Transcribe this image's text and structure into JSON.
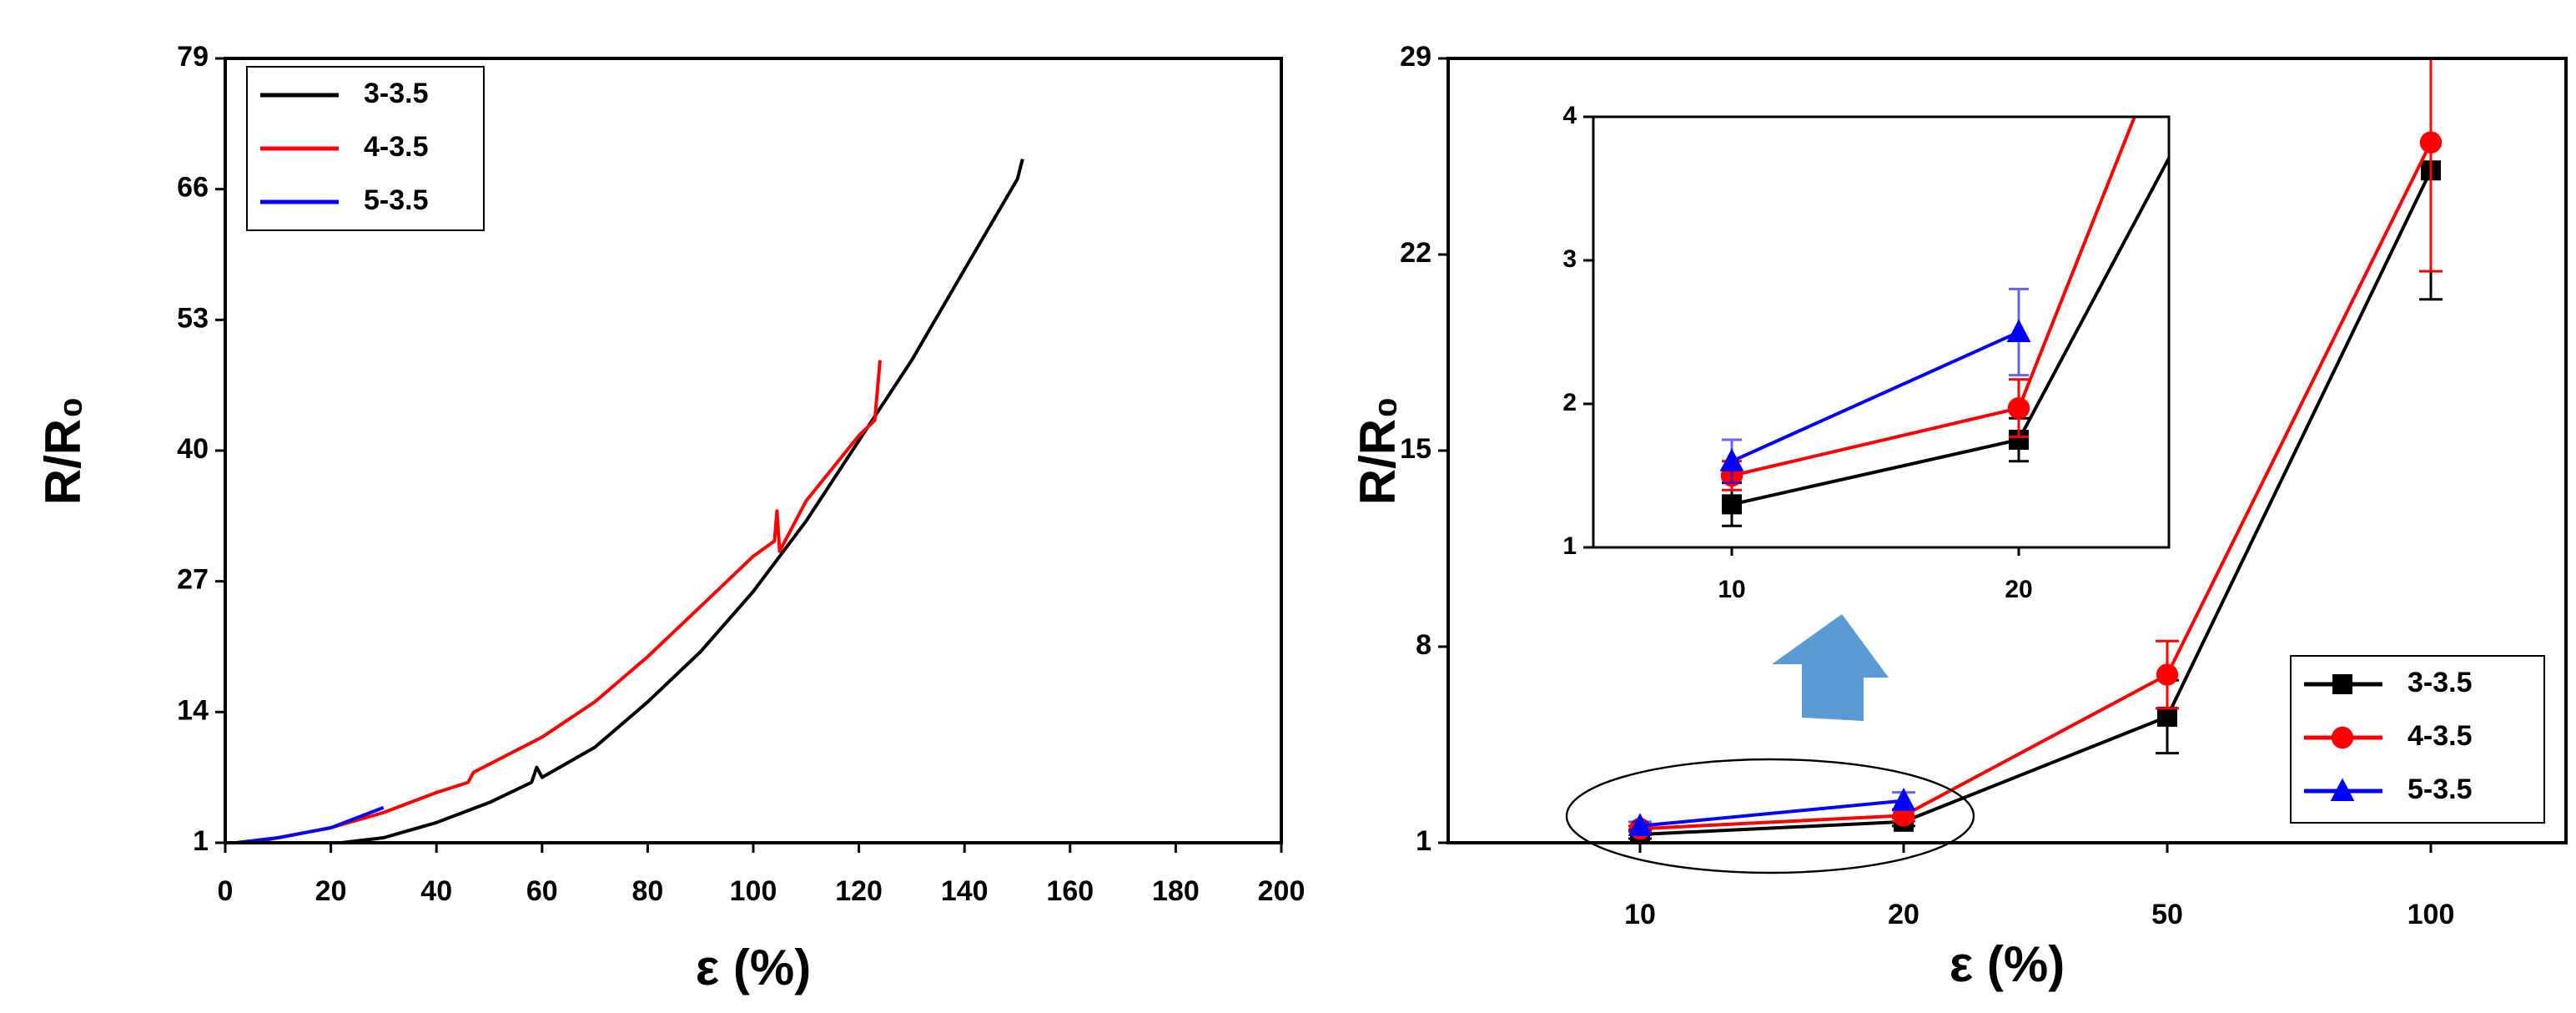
{
  "chart_data": [
    {
      "type": "line",
      "x_label": "ε (%)",
      "y_label": "R/R₀",
      "xlim": [
        0,
        200
      ],
      "xticks": [
        0,
        20,
        40,
        60,
        80,
        100,
        120,
        140,
        160,
        180,
        200
      ],
      "ylim": [
        1,
        79
      ],
      "yticks": [
        1,
        14,
        27,
        40,
        53,
        66,
        79
      ],
      "legend": "upper left",
      "series": [
        {
          "name": "3-3.5",
          "color": "#000000",
          "x": [
            22,
            30,
            40,
            50,
            58,
            59,
            60,
            70,
            80,
            90,
            100,
            110,
            120,
            130,
            140,
            150,
            151
          ],
          "values": [
            1,
            1.5,
            3,
            5,
            7,
            8.5,
            7.5,
            10.5,
            15,
            20,
            26,
            33,
            41,
            49,
            58,
            67,
            69
          ]
        },
        {
          "name": "4-3.5",
          "color": "#ff0000",
          "x": [
            5,
            20,
            30,
            40,
            46,
            47,
            60,
            70,
            80,
            90,
            100,
            104,
            104.5,
            105,
            110,
            120,
            123,
            124
          ],
          "values": [
            1,
            2.5,
            4,
            6,
            7,
            8,
            11.5,
            15,
            19.5,
            24.5,
            29.5,
            31,
            34,
            30,
            35,
            41.5,
            43,
            49
          ]
        },
        {
          "name": "5-3.5",
          "color": "#0000ff",
          "x": [
            2,
            10,
            20,
            30
          ],
          "values": [
            1,
            1.5,
            2.5,
            4.5
          ]
        }
      ]
    },
    {
      "type": "errorbar",
      "x_label": "ε (%)",
      "y_label": "R/R₀",
      "categories": [
        "10",
        "20",
        "50",
        "100"
      ],
      "ylim": [
        1,
        29
      ],
      "yticks": [
        1,
        8,
        15,
        22,
        29
      ],
      "legend": "lower right",
      "series": [
        {
          "name": "3-3.5",
          "color": "#000000",
          "marker": "square",
          "values": [
            1.3,
            1.75,
            5.5,
            25
          ],
          "errors": [
            0.15,
            0.15,
            1.3,
            4.6
          ]
        },
        {
          "name": "4-3.5",
          "color": "#ff0000",
          "marker": "circle",
          "values": [
            1.5,
            1.97,
            7,
            26
          ],
          "errors": [
            0.1,
            0.2,
            1.2,
            4.6
          ]
        },
        {
          "name": "5-3.5",
          "color": "#0000ff",
          "marker": "triangle",
          "values": [
            1.6,
            2.5,
            null,
            null
          ],
          "errors": [
            0.15,
            0.3,
            null,
            null
          ]
        }
      ],
      "inset": {
        "ylim": [
          1,
          4
        ],
        "yticks": [
          1,
          2,
          3,
          4
        ]
      }
    }
  ]
}
